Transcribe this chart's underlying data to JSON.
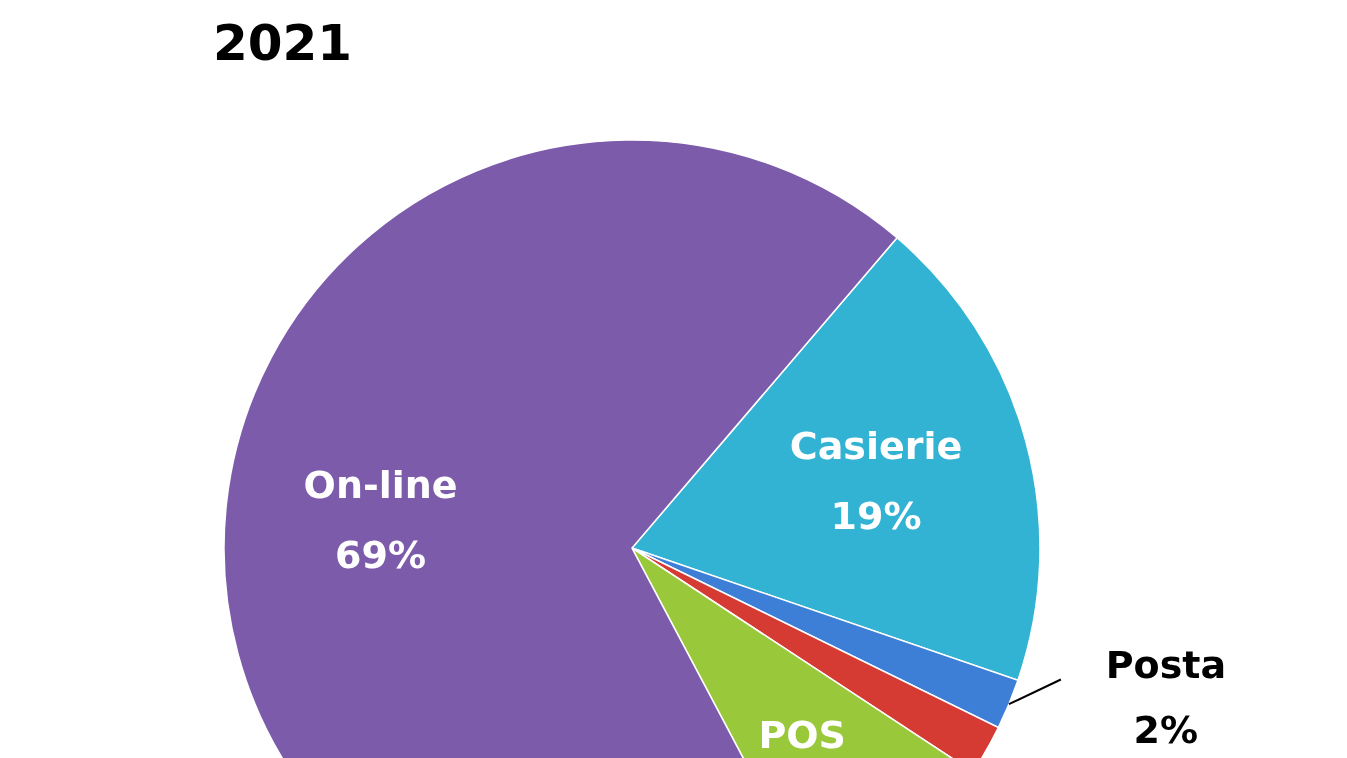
{
  "chart_data": {
    "type": "pie",
    "title": "2021",
    "categories": [
      "Casierie",
      "Posta",
      null,
      "POS",
      "On-line"
    ],
    "values": [
      19,
      2,
      2,
      8,
      69
    ],
    "colors": [
      "#33b3d3",
      "#3d7ed6",
      "#d53a33",
      "#9ac83b",
      "#7d5bab"
    ],
    "value_labels": [
      "19%",
      "2%",
      null,
      null,
      "69%"
    ],
    "legend": false
  }
}
